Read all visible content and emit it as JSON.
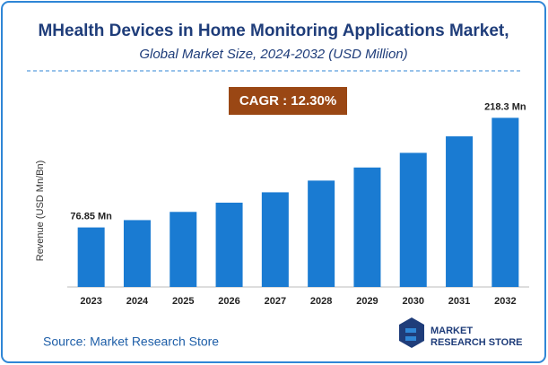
{
  "chart_data": {
    "type": "bar",
    "title": "MHealth Devices in Home Monitoring Applications Market,",
    "subtitle": "Global Market Size, 2024-2032 (USD Million)",
    "annotation": "CAGR : 12.30%",
    "y_label": "Revenue (USD Mn/Bn)",
    "source": "Source: Market Research Store",
    "logo": [
      "MARKET",
      "RESEARCH STORE"
    ],
    "categories": [
      "2023",
      "2024",
      "2025",
      "2026",
      "2027",
      "2028",
      "2029",
      "2030",
      "2031",
      "2032"
    ],
    "values": [
      76.85,
      86.3,
      96.9,
      108.8,
      122.2,
      137.3,
      154.2,
      173.1,
      194.4,
      218.3
    ],
    "value_labels": [
      "76.85 Mn",
      null,
      null,
      null,
      null,
      null,
      null,
      null,
      null,
      "218.3 Mn"
    ],
    "color": "#1a7bd2",
    "ylim": [
      0,
      250
    ]
  }
}
